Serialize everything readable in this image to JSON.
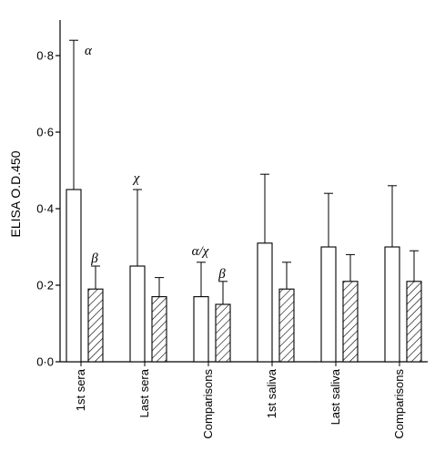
{
  "chart_data": {
    "type": "bar",
    "title": "",
    "xlabel": "",
    "ylabel": "ELISA O.D.450",
    "ylim": [
      0,
      0.9
    ],
    "yticks": [
      0,
      0.2,
      0.4,
      0.6,
      0.8
    ],
    "ytick_labels": [
      "0·0",
      "0·2",
      "0·4",
      "0·6",
      "0·8"
    ],
    "categories": [
      "1st sera",
      "Last sera",
      "Comparisons",
      "1st saliva",
      "Last saliva",
      "Comparisons"
    ],
    "series": [
      {
        "fill": "open",
        "values": [
          0.45,
          0.25,
          0.17,
          0.31,
          0.3,
          0.3
        ],
        "error_upper": [
          0.84,
          0.45,
          0.26,
          0.49,
          0.44,
          0.46
        ]
      },
      {
        "fill": "hatched",
        "values": [
          0.19,
          0.17,
          0.15,
          0.19,
          0.21,
          0.21
        ],
        "error_upper": [
          0.25,
          0.22,
          0.21,
          0.26,
          0.28,
          0.29
        ]
      }
    ],
    "annotations": [
      {
        "category": 0,
        "series": 0,
        "text": "α"
      },
      {
        "category": 0,
        "series": 1,
        "text": "β"
      },
      {
        "category": 1,
        "series": 0,
        "text": "χ"
      },
      {
        "category": 2,
        "series": 0,
        "text": "α/χ"
      },
      {
        "category": 2,
        "series": 1,
        "text": "β"
      }
    ],
    "grid": false,
    "legend": "none",
    "colors": {
      "bar_stroke": "#000000",
      "bar_fill": "#ffffff",
      "hatch": "#000000"
    }
  }
}
